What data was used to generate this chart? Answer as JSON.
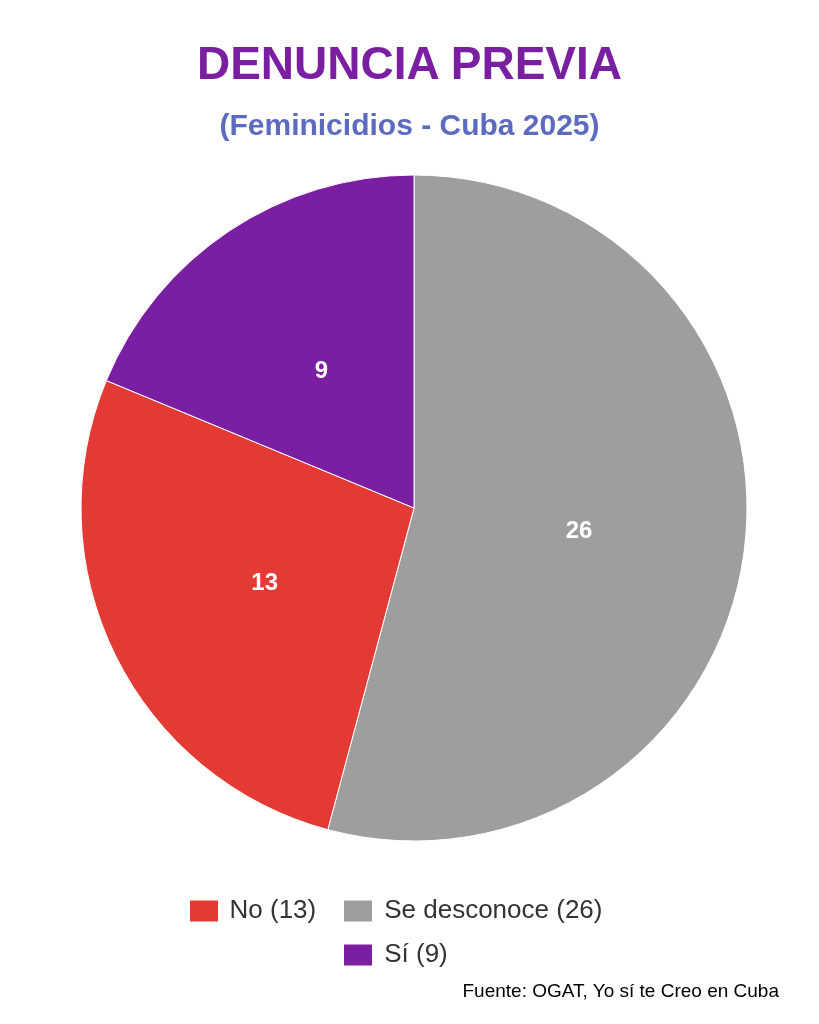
{
  "chart_data": {
    "type": "pie",
    "title": "DENUNCIA PREVIA",
    "subtitle": "(Feminicidios - Cuba 2025)",
    "categories": [
      "Se desconoce (26)",
      "No (13)",
      "Sí (9)"
    ],
    "values": [
      26,
      13,
      9
    ],
    "colors": [
      "#9e9e9e",
      "#e53935",
      "#7b1fa2"
    ],
    "data_labels": true,
    "legend": "bottom",
    "annotations": [
      "Fuente: OGAT, Yo sí te Creo en Cuba"
    ]
  }
}
